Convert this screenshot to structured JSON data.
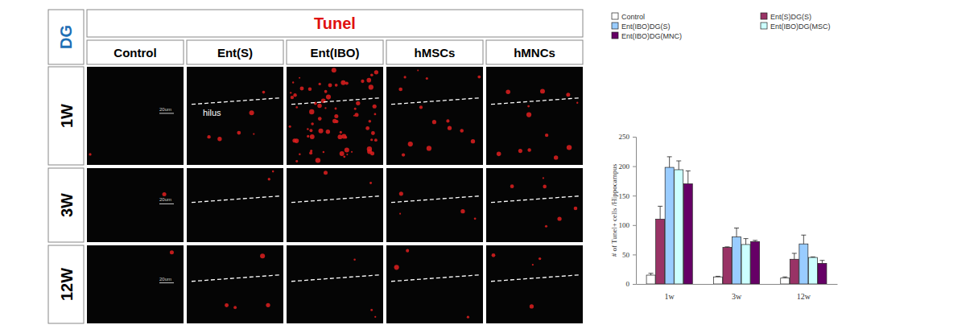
{
  "panels": {
    "region": "DG",
    "title": "Tunel",
    "columns": [
      "Control",
      "Ent(S)",
      "Ent(IBO)",
      "hMSCs",
      "hMNCs"
    ],
    "rows": [
      "1W",
      "3W",
      "12W"
    ],
    "annotation": "hilus",
    "scale_bar": "20um"
  },
  "chart_data": {
    "type": "bar",
    "y_label": "# of Tunel+ cells /Hippocampus",
    "categories": [
      "1w",
      "3w",
      "12w"
    ],
    "series": [
      {
        "name": "Control",
        "color": "#ffffff",
        "values": [
          15,
          12,
          10
        ],
        "errors": [
          3,
          1,
          2
        ]
      },
      {
        "name": "Ent(S)DG(S)",
        "color": "#993366",
        "values": [
          110,
          62,
          42
        ],
        "errors": [
          22,
          1,
          10
        ]
      },
      {
        "name": "Ent(IBO)DG(S)",
        "color": "#99ccff",
        "values": [
          198,
          80,
          68
        ],
        "errors": [
          18,
          15,
          15
        ]
      },
      {
        "name": "Ent(IBO)DG(MSC)",
        "color": "#ccffff",
        "values": [
          194,
          67,
          45
        ],
        "errors": [
          15,
          10,
          1
        ]
      },
      {
        "name": "Ent(IBO)DG(MNC)",
        "color": "#660066",
        "values": [
          170,
          72,
          35
        ],
        "errors": [
          22,
          2,
          5
        ]
      }
    ],
    "ylim": [
      0,
      250
    ],
    "yticks": [
      0,
      50,
      100,
      150,
      200,
      250
    ],
    "legend": "top",
    "grid": false
  }
}
